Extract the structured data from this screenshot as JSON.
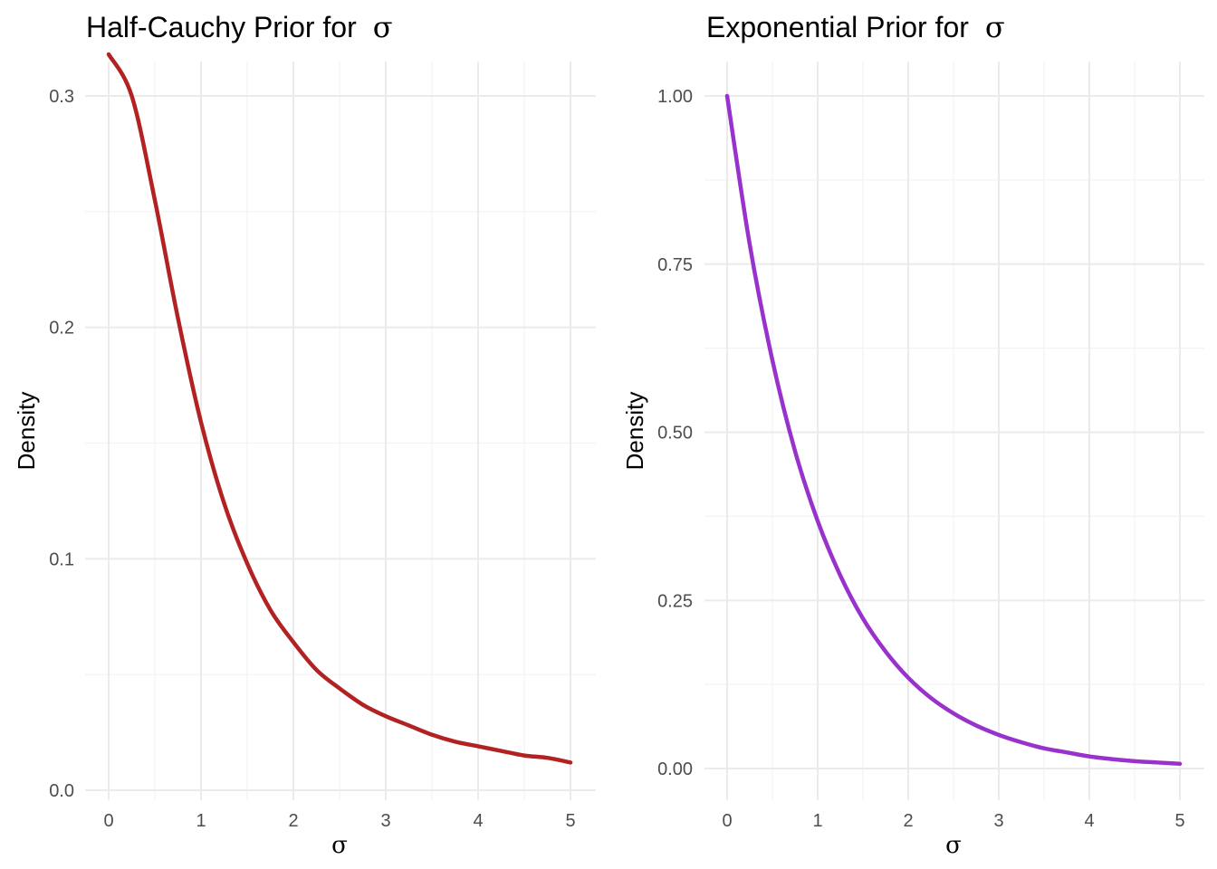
{
  "colors": {
    "half_cauchy_line": "#B22222",
    "exponential_line": "#9932CC",
    "grid": "#ebebeb",
    "tick_text": "#4d4d4d"
  },
  "chart_data": [
    {
      "type": "line",
      "title_prefix": "Half-Cauchy Prior for",
      "title_symbol": "σ",
      "xlabel": "σ",
      "ylabel": "Density",
      "xlim": [
        0,
        5
      ],
      "ylim": [
        0,
        0.32
      ],
      "x_ticks": [
        0,
        1,
        2,
        3,
        4,
        5
      ],
      "x_tick_labels": [
        "0",
        "1",
        "2",
        "3",
        "4",
        "5"
      ],
      "y_ticks": [
        0.0,
        0.1,
        0.2,
        0.3
      ],
      "y_tick_labels": [
        "0.0",
        "0.1",
        "0.2",
        "0.3"
      ],
      "grid": true,
      "legend": "none",
      "series": [
        {
          "color": "#B22222",
          "x": [
            0,
            0.25,
            0.5,
            0.75,
            1,
            1.25,
            1.5,
            1.75,
            2,
            2.25,
            2.5,
            2.75,
            3,
            3.25,
            3.5,
            3.75,
            4,
            4.25,
            4.5,
            4.75,
            5
          ],
          "y": [
            0.318,
            0.3,
            0.255,
            0.204,
            0.159,
            0.124,
            0.098,
            0.078,
            0.064,
            0.052,
            0.044,
            0.037,
            0.032,
            0.028,
            0.024,
            0.021,
            0.019,
            0.017,
            0.015,
            0.014,
            0.012
          ]
        }
      ]
    },
    {
      "type": "line",
      "title_prefix": "Exponential Prior for",
      "title_symbol": "σ",
      "xlabel": "σ",
      "ylabel": "Density",
      "xlim": [
        0,
        5
      ],
      "ylim": [
        0,
        1
      ],
      "x_ticks": [
        0,
        1,
        2,
        3,
        4,
        5
      ],
      "x_tick_labels": [
        "0",
        "1",
        "2",
        "3",
        "4",
        "5"
      ],
      "y_ticks": [
        0.0,
        0.25,
        0.5,
        0.75,
        1.0
      ],
      "y_tick_labels": [
        "0.00",
        "0.25",
        "0.50",
        "0.75",
        "1.00"
      ],
      "grid": true,
      "legend": "none",
      "series": [
        {
          "color": "#9932CC",
          "x": [
            0,
            0.25,
            0.5,
            0.75,
            1,
            1.25,
            1.5,
            1.75,
            2,
            2.25,
            2.5,
            2.75,
            3,
            3.25,
            3.5,
            3.75,
            4,
            4.25,
            4.5,
            4.75,
            5
          ],
          "y": [
            1.0,
            0.779,
            0.607,
            0.472,
            0.368,
            0.287,
            0.223,
            0.174,
            0.135,
            0.105,
            0.082,
            0.064,
            0.05,
            0.039,
            0.03,
            0.024,
            0.018,
            0.014,
            0.011,
            0.009,
            0.007
          ]
        }
      ]
    }
  ]
}
